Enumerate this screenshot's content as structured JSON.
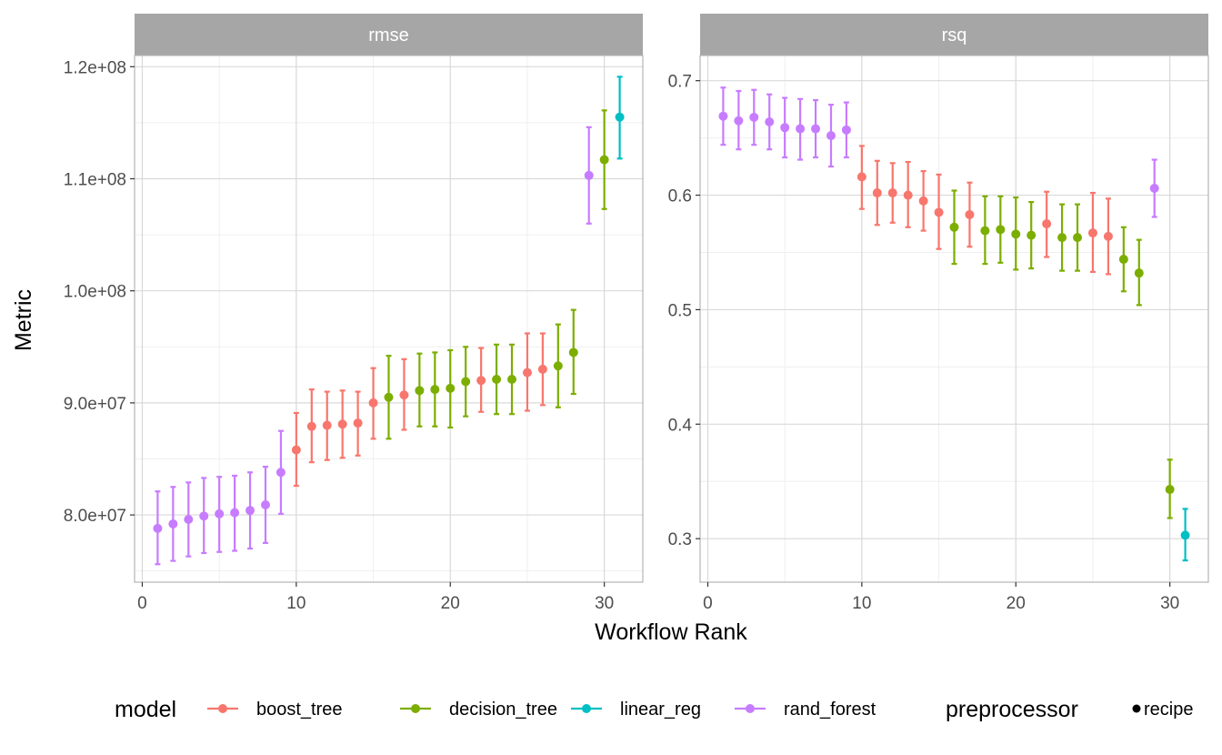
{
  "chart_data": [
    {
      "type": "scatter",
      "panel": "rmse",
      "xlabel": "Workflow Rank",
      "ylabel": "Metric",
      "xlim": [
        -0.5,
        32.5
      ],
      "ylim": [
        74000000,
        121000000
      ],
      "x_ticks": [
        0,
        10,
        20,
        30
      ],
      "x_tick_labels": [
        "0",
        "10",
        "20",
        "30"
      ],
      "y_ticks": [
        80000000,
        90000000,
        100000000,
        110000000,
        120000000
      ],
      "y_tick_labels": [
        "8.0e+07",
        "9.0e+07",
        "1.0e+08",
        "1.1e+08",
        "1.2e+08"
      ],
      "grid": true,
      "points": [
        {
          "rank": 1,
          "model": "rand_forest",
          "mean": 78800000,
          "lower": 75600000,
          "upper": 82100000
        },
        {
          "rank": 2,
          "model": "rand_forest",
          "mean": 79200000,
          "lower": 75900000,
          "upper": 82500000
        },
        {
          "rank": 3,
          "model": "rand_forest",
          "mean": 79600000,
          "lower": 76300000,
          "upper": 82900000
        },
        {
          "rank": 4,
          "model": "rand_forest",
          "mean": 79900000,
          "lower": 76600000,
          "upper": 83300000
        },
        {
          "rank": 5,
          "model": "rand_forest",
          "mean": 80100000,
          "lower": 76700000,
          "upper": 83400000
        },
        {
          "rank": 6,
          "model": "rand_forest",
          "mean": 80200000,
          "lower": 76800000,
          "upper": 83500000
        },
        {
          "rank": 7,
          "model": "rand_forest",
          "mean": 80400000,
          "lower": 77000000,
          "upper": 83800000
        },
        {
          "rank": 8,
          "model": "rand_forest",
          "mean": 80900000,
          "lower": 77500000,
          "upper": 84300000
        },
        {
          "rank": 9,
          "model": "rand_forest",
          "mean": 83800000,
          "lower": 80100000,
          "upper": 87500000
        },
        {
          "rank": 10,
          "model": "boost_tree",
          "mean": 85800000,
          "lower": 82600000,
          "upper": 89100000
        },
        {
          "rank": 11,
          "model": "boost_tree",
          "mean": 87900000,
          "lower": 84700000,
          "upper": 91200000
        },
        {
          "rank": 12,
          "model": "boost_tree",
          "mean": 88000000,
          "lower": 84900000,
          "upper": 91000000
        },
        {
          "rank": 13,
          "model": "boost_tree",
          "mean": 88100000,
          "lower": 85100000,
          "upper": 91100000
        },
        {
          "rank": 14,
          "model": "boost_tree",
          "mean": 88200000,
          "lower": 85300000,
          "upper": 91000000
        },
        {
          "rank": 15,
          "model": "boost_tree",
          "mean": 90000000,
          "lower": 86800000,
          "upper": 93100000
        },
        {
          "rank": 16,
          "model": "decision_tree",
          "mean": 90500000,
          "lower": 86800000,
          "upper": 94200000
        },
        {
          "rank": 17,
          "model": "boost_tree",
          "mean": 90700000,
          "lower": 87600000,
          "upper": 93900000
        },
        {
          "rank": 18,
          "model": "decision_tree",
          "mean": 91100000,
          "lower": 87900000,
          "upper": 94400000
        },
        {
          "rank": 19,
          "model": "decision_tree",
          "mean": 91200000,
          "lower": 87900000,
          "upper": 94500000
        },
        {
          "rank": 20,
          "model": "decision_tree",
          "mean": 91300000,
          "lower": 87800000,
          "upper": 94700000
        },
        {
          "rank": 21,
          "model": "decision_tree",
          "mean": 91900000,
          "lower": 88800000,
          "upper": 95000000
        },
        {
          "rank": 22,
          "model": "boost_tree",
          "mean": 92000000,
          "lower": 89200000,
          "upper": 94900000
        },
        {
          "rank": 23,
          "model": "decision_tree",
          "mean": 92100000,
          "lower": 89000000,
          "upper": 95200000
        },
        {
          "rank": 24,
          "model": "decision_tree",
          "mean": 92100000,
          "lower": 89000000,
          "upper": 95200000
        },
        {
          "rank": 25,
          "model": "boost_tree",
          "mean": 92700000,
          "lower": 89300000,
          "upper": 96200000
        },
        {
          "rank": 26,
          "model": "boost_tree",
          "mean": 93000000,
          "lower": 89800000,
          "upper": 96200000
        },
        {
          "rank": 27,
          "model": "decision_tree",
          "mean": 93300000,
          "lower": 89600000,
          "upper": 97000000
        },
        {
          "rank": 28,
          "model": "decision_tree",
          "mean": 94500000,
          "lower": 90800000,
          "upper": 98300000
        },
        {
          "rank": 29,
          "model": "rand_forest",
          "mean": 110300000,
          "lower": 106000000,
          "upper": 114600000
        },
        {
          "rank": 30,
          "model": "decision_tree",
          "mean": 111700000,
          "lower": 107300000,
          "upper": 116100000
        },
        {
          "rank": 31,
          "model": "linear_reg",
          "mean": 115500000,
          "lower": 111800000,
          "upper": 119100000
        }
      ]
    },
    {
      "type": "scatter",
      "panel": "rsq",
      "xlabel": "Workflow Rank",
      "ylabel": "Metric",
      "xlim": [
        -0.5,
        32.5
      ],
      "ylim": [
        0.262,
        0.722
      ],
      "x_ticks": [
        0,
        10,
        20,
        30
      ],
      "x_tick_labels": [
        "0",
        "10",
        "20",
        "30"
      ],
      "y_ticks": [
        0.3,
        0.4,
        0.5,
        0.6,
        0.7
      ],
      "y_tick_labels": [
        "0.3",
        "0.4",
        "0.5",
        "0.6",
        "0.7"
      ],
      "grid": true,
      "points": [
        {
          "rank": 1,
          "model": "rand_forest",
          "mean": 0.669,
          "lower": 0.644,
          "upper": 0.694
        },
        {
          "rank": 2,
          "model": "rand_forest",
          "mean": 0.665,
          "lower": 0.64,
          "upper": 0.691
        },
        {
          "rank": 3,
          "model": "rand_forest",
          "mean": 0.668,
          "lower": 0.644,
          "upper": 0.692
        },
        {
          "rank": 4,
          "model": "rand_forest",
          "mean": 0.664,
          "lower": 0.64,
          "upper": 0.688
        },
        {
          "rank": 5,
          "model": "rand_forest",
          "mean": 0.659,
          "lower": 0.633,
          "upper": 0.685
        },
        {
          "rank": 6,
          "model": "rand_forest",
          "mean": 0.658,
          "lower": 0.631,
          "upper": 0.684
        },
        {
          "rank": 7,
          "model": "rand_forest",
          "mean": 0.658,
          "lower": 0.633,
          "upper": 0.683
        },
        {
          "rank": 8,
          "model": "rand_forest",
          "mean": 0.652,
          "lower": 0.625,
          "upper": 0.679
        },
        {
          "rank": 9,
          "model": "rand_forest",
          "mean": 0.657,
          "lower": 0.633,
          "upper": 0.681
        },
        {
          "rank": 10,
          "model": "boost_tree",
          "mean": 0.616,
          "lower": 0.588,
          "upper": 0.643
        },
        {
          "rank": 11,
          "model": "boost_tree",
          "mean": 0.602,
          "lower": 0.574,
          "upper": 0.63
        },
        {
          "rank": 12,
          "model": "boost_tree",
          "mean": 0.602,
          "lower": 0.576,
          "upper": 0.628
        },
        {
          "rank": 13,
          "model": "boost_tree",
          "mean": 0.6,
          "lower": 0.572,
          "upper": 0.629
        },
        {
          "rank": 14,
          "model": "boost_tree",
          "mean": 0.595,
          "lower": 0.569,
          "upper": 0.621
        },
        {
          "rank": 15,
          "model": "boost_tree",
          "mean": 0.585,
          "lower": 0.553,
          "upper": 0.618
        },
        {
          "rank": 16,
          "model": "decision_tree",
          "mean": 0.572,
          "lower": 0.54,
          "upper": 0.604
        },
        {
          "rank": 17,
          "model": "boost_tree",
          "mean": 0.583,
          "lower": 0.555,
          "upper": 0.611
        },
        {
          "rank": 18,
          "model": "decision_tree",
          "mean": 0.569,
          "lower": 0.54,
          "upper": 0.599
        },
        {
          "rank": 19,
          "model": "decision_tree",
          "mean": 0.57,
          "lower": 0.541,
          "upper": 0.599
        },
        {
          "rank": 20,
          "model": "decision_tree",
          "mean": 0.566,
          "lower": 0.535,
          "upper": 0.598
        },
        {
          "rank": 21,
          "model": "decision_tree",
          "mean": 0.565,
          "lower": 0.536,
          "upper": 0.594
        },
        {
          "rank": 22,
          "model": "boost_tree",
          "mean": 0.575,
          "lower": 0.546,
          "upper": 0.603
        },
        {
          "rank": 23,
          "model": "decision_tree",
          "mean": 0.563,
          "lower": 0.534,
          "upper": 0.592
        },
        {
          "rank": 24,
          "model": "decision_tree",
          "mean": 0.563,
          "lower": 0.534,
          "upper": 0.592
        },
        {
          "rank": 25,
          "model": "boost_tree",
          "mean": 0.567,
          "lower": 0.533,
          "upper": 0.602
        },
        {
          "rank": 26,
          "model": "boost_tree",
          "mean": 0.564,
          "lower": 0.531,
          "upper": 0.597
        },
        {
          "rank": 27,
          "model": "decision_tree",
          "mean": 0.544,
          "lower": 0.516,
          "upper": 0.572
        },
        {
          "rank": 28,
          "model": "decision_tree",
          "mean": 0.532,
          "lower": 0.504,
          "upper": 0.561
        },
        {
          "rank": 29,
          "model": "rand_forest",
          "mean": 0.606,
          "lower": 0.581,
          "upper": 0.631
        },
        {
          "rank": 30,
          "model": "decision_tree",
          "mean": 0.343,
          "lower": 0.318,
          "upper": 0.369
        },
        {
          "rank": 31,
          "model": "linear_reg",
          "mean": 0.303,
          "lower": 0.281,
          "upper": 0.326
        }
      ]
    }
  ],
  "legend": {
    "placement": "bottom",
    "model_title": "model",
    "model_entries": [
      {
        "key": "boost_tree",
        "label": "boost_tree",
        "color": "#F8766D"
      },
      {
        "key": "decision_tree",
        "label": "decision_tree",
        "color": "#7CAE00"
      },
      {
        "key": "linear_reg",
        "label": "linear_reg",
        "color": "#00BFC4"
      },
      {
        "key": "rand_forest",
        "label": "rand_forest",
        "color": "#C77CFF"
      }
    ],
    "preprocessor_title": "preprocessor",
    "preprocessor_entries": [
      {
        "label": "recipe",
        "color": "#000000"
      }
    ]
  },
  "style": {
    "strip_fill": "#A6A6A6",
    "strip_text_color": "#FFFFFF",
    "panel_border_color": "#B3B3B3",
    "grid_major_color": "#D9D9D9",
    "grid_minor_color": "#EFEFEF"
  }
}
